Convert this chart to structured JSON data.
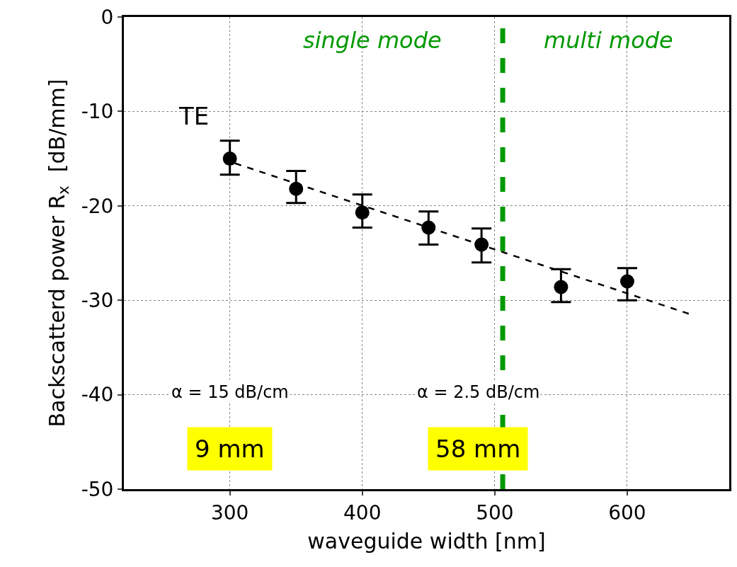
{
  "chart_data": {
    "type": "scatter",
    "xlabel": "waveguide width [nm]",
    "ylabel": "Backscatterd power R$_{x}$  [dB/mm]",
    "xlim": [
      220,
      677
    ],
    "xticks": [
      300,
      400,
      500,
      600
    ],
    "ylim": [
      -50,
      0
    ],
    "yticks": [
      -50,
      -40,
      -30,
      -20,
      -10,
      0
    ],
    "grid": true,
    "series": [
      {
        "marker": "circle",
        "color": "#000000",
        "x": [
          300,
          350,
          400,
          450,
          490,
          550,
          600
        ],
        "values": [
          -15.0,
          -18.2,
          -20.7,
          -22.3,
          -24.1,
          -28.6,
          -28.0
        ],
        "errors": [
          [
            -16.7,
            -13.1
          ],
          [
            -19.7,
            -16.3
          ],
          [
            -22.3,
            -18.8
          ],
          [
            -24.1,
            -20.6
          ],
          [
            -26.0,
            -22.4
          ],
          [
            -30.2,
            -26.7
          ],
          [
            -30.0,
            -26.6
          ]
        ]
      },
      {
        "type": "line",
        "color": "#000000",
        "line_style": "dashed",
        "x": [
          304,
          648
        ],
        "values": [
          -15.5,
          -31.5
        ]
      }
    ],
    "ref_lines": [
      {
        "axis": "x",
        "value": 506,
        "color": "#009900",
        "line_style": "dashed"
      }
    ],
    "annotations": [
      "single mode",
      "multi mode",
      "TE",
      "α = 15 dB/cm",
      "α = 2.5 dB/cm",
      "9 mm",
      "58 mm"
    ]
  }
}
